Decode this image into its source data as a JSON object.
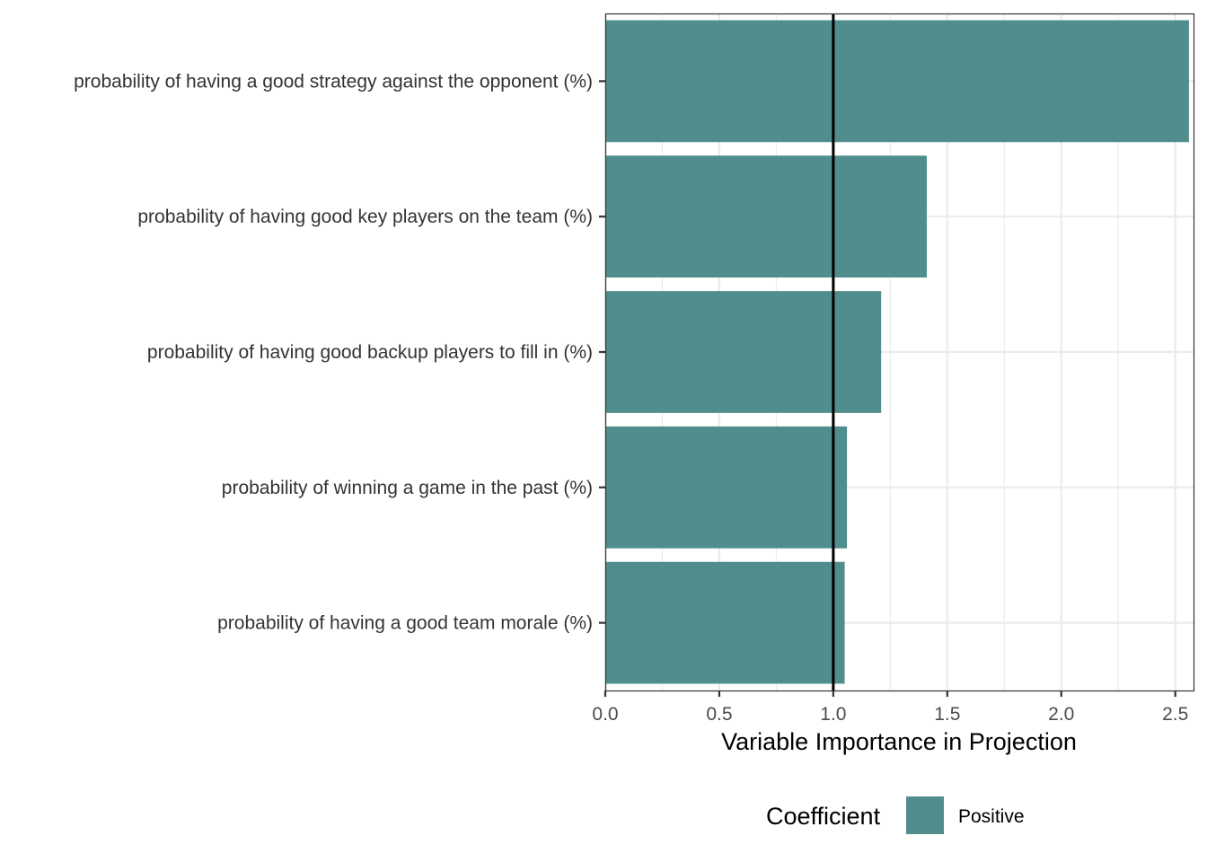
{
  "chart_data": {
    "type": "bar",
    "orientation": "horizontal",
    "categories": [
      "probability of having a good strategy against the opponent (%)",
      "probability of having good key players on the team (%)",
      "probability of having good backup players to fill in (%)",
      "probability of winning a game in the past (%)",
      "probability of having a good team morale (%)"
    ],
    "values": [
      2.56,
      1.41,
      1.21,
      1.06,
      1.05
    ],
    "xlabel": "Variable Importance in Projection",
    "ylabel": "",
    "xlim": [
      0,
      2.58
    ],
    "x_ticks": [
      0.0,
      0.5,
      1.0,
      1.5,
      2.0,
      2.5
    ],
    "x_tick_labels": [
      "0.0",
      "0.5",
      "1.0",
      "1.5",
      "2.0",
      "2.5"
    ],
    "reference_line": 1.0,
    "grid": true,
    "legend": {
      "title": "Coefficient",
      "placement": "bottom",
      "entries": [
        {
          "label": "Positive",
          "color": "#508d8c"
        }
      ]
    },
    "colors": {
      "bar": "#508d8c",
      "grid": "#ebebeb",
      "reference": "#000000"
    }
  }
}
